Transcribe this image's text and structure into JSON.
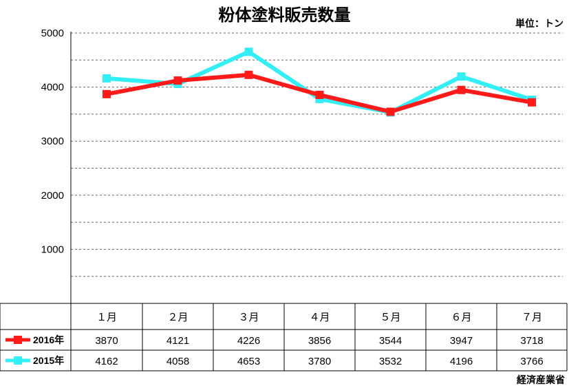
{
  "title": "粉体塗料販売数量",
  "unit_label": "単位：トン",
  "source": "経済産業省",
  "colors": {
    "series_2016": "#ff1a1a",
    "series_2015": "#33eef5",
    "grid": "#666666"
  },
  "chart_data": {
    "type": "line",
    "title": "粉体塗料販売数量",
    "xlabel": "",
    "ylabel": "",
    "ylim": [
      0,
      5000
    ],
    "yticks": [
      "1000",
      "2000",
      "3000",
      "4000",
      "5000"
    ],
    "grid": true,
    "legend_placement": "table-left",
    "categories": [
      "１月",
      "２月",
      "３月",
      "４月",
      "５月",
      "６月",
      "７月"
    ],
    "series": [
      {
        "name": "2016年",
        "color": "#ff1a1a",
        "values": [
          3870,
          4121,
          4226,
          3856,
          3544,
          3947,
          3718
        ]
      },
      {
        "name": "2015年",
        "color": "#33eef5",
        "values": [
          4162,
          4058,
          4653,
          3780,
          3532,
          4196,
          3766
        ]
      }
    ]
  }
}
